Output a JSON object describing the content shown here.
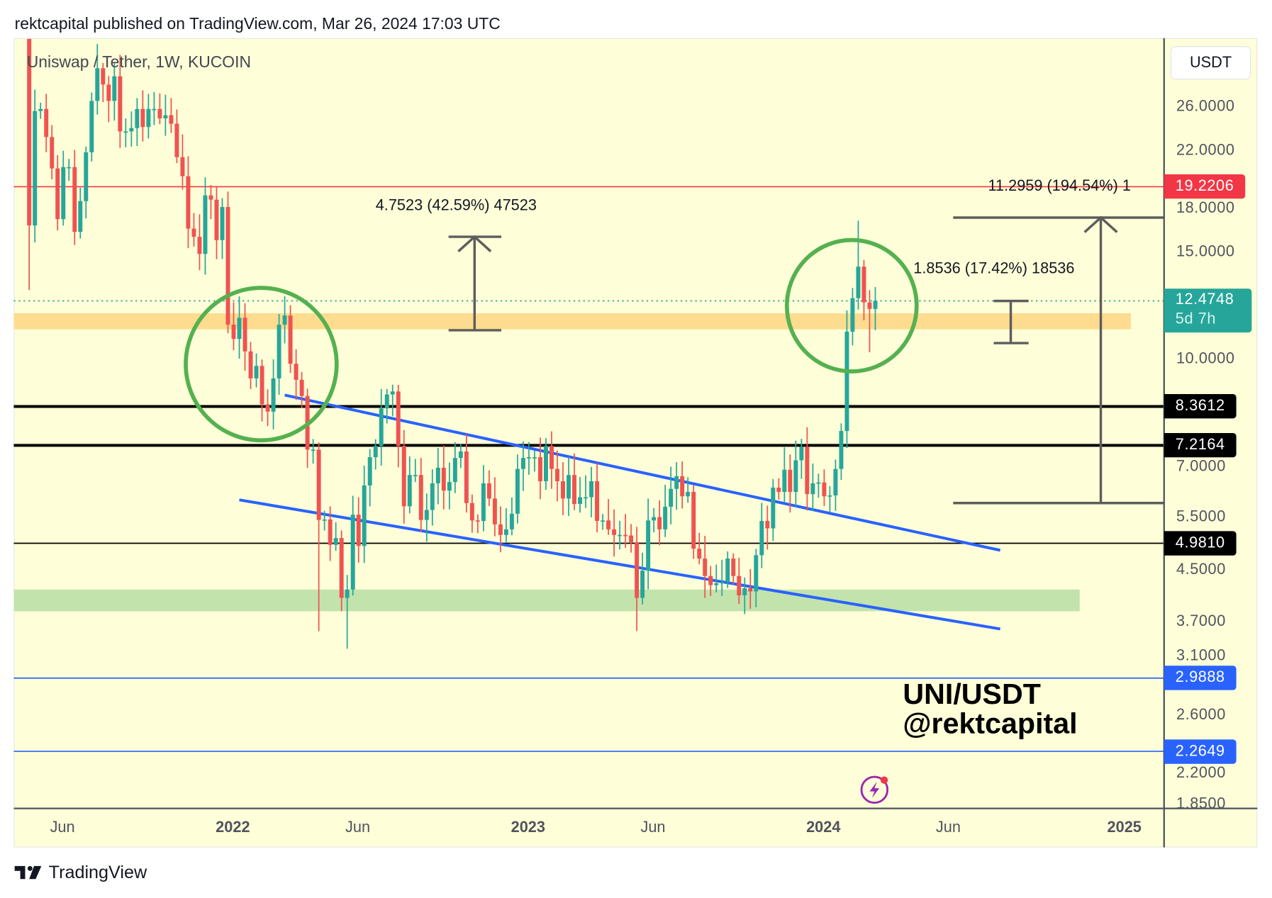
{
  "header": {
    "published": "rektcapital published on TradingView.com, Mar 26, 2024 17:03 UTC"
  },
  "footer": {
    "logo_text": "TradingView"
  },
  "chart_data": {
    "type": "candlestick",
    "title": "Uniswap / Tether, 1W, KUCOIN",
    "currency": "USDT",
    "scale": "log",
    "first_open": 40,
    "closes": [
      16.6,
      25.6,
      25.8,
      23.2,
      20.6,
      17.0,
      20.7,
      20.7,
      16.2,
      18.2,
      21.9,
      26.6,
      30.1,
      28.3,
      26.6,
      29.2,
      23.7,
      23.7,
      24.0,
      25.8,
      24.1,
      25.8,
      25.8,
      24.9,
      25.2,
      24.4,
      21.5,
      20.0,
      16.4,
      15.9,
      14.9,
      18.6,
      18.3,
      15.7,
      17.8,
      11.4,
      10.8,
      11.7,
      10.3,
      9.3,
      9.75,
      8.43,
      8.2,
      9.3,
      11.4,
      11.8,
      9.83,
      9.25,
      8.7,
      7.1,
      7.1,
      5.44,
      5.45,
      4.95,
      5.08,
      4.05,
      4.18,
      5.55,
      4.93,
      6.2,
      6.9,
      7.2,
      8.3,
      8.75,
      8.85,
      7.2,
      5.73,
      6.45,
      6.45,
      5.44,
      5.65,
      6.25,
      6.63,
      6.08,
      6.28,
      6.88,
      7.05,
      5.8,
      5.43,
      5.42,
      6.25,
      5.9,
      5.35,
      5.14,
      5.25,
      5.57,
      6.6,
      6.88,
      6.9,
      6.9,
      6.3,
      7.2,
      6.6,
      6.3,
      5.9,
      6.45,
      5.78,
      5.93,
      5.93,
      6.3,
      5.42,
      5.43,
      5.25,
      5.14,
      5.14,
      5.13,
      5.0,
      4.05,
      4.49,
      5.43,
      5.5,
      5.25,
      5.72,
      6.12,
      6.42,
      5.95,
      6.05,
      4.88,
      4.7,
      4.4,
      4.25,
      4.28,
      4.3,
      4.7,
      4.4,
      4.09,
      4.2,
      4.15,
      4.76,
      5.42,
      5.27,
      6.15,
      6.05,
      6.58,
      6.05,
      6.82,
      7.18,
      6.0,
      6.25,
      6.27,
      5.95,
      5.97,
      6.6,
      7.62,
      11.1,
      12.6,
      14.2,
      12.4,
      12.1,
      12.4748
    ],
    "known_highs": {
      "0": 42,
      "12": 33,
      "146": 16.9
    },
    "known_lows": {
      "0": 13.0,
      "51": 3.57,
      "56": 3.34,
      "107": 3.57,
      "126": 3.81,
      "148": 10.27
    },
    "y_ticks": [
      "26.0000",
      "22.0000",
      "18.0000",
      "15.0000",
      "10.0000",
      "7.0000",
      "5.5000",
      "4.5000",
      "3.7000",
      "3.1000",
      "2.6000",
      "2.2000",
      "1.8500"
    ],
    "y_tick_values": [
      26,
      22,
      18,
      15,
      10,
      7,
      5.5,
      4.5,
      3.7,
      3.1,
      2.6,
      2.2,
      1.85
    ],
    "x_ticks": [
      {
        "label": "Jun",
        "bold": false,
        "week": 3
      },
      {
        "label": "2022",
        "bold": true,
        "week": 33
      },
      {
        "label": "Jun",
        "bold": false,
        "week": 55
      },
      {
        "label": "2023",
        "bold": true,
        "week": 85
      },
      {
        "label": "Jun",
        "bold": false,
        "week": 107
      },
      {
        "label": "2024",
        "bold": true,
        "week": 137
      },
      {
        "label": "Jun",
        "bold": false,
        "week": 159
      },
      {
        "label": "2025",
        "bold": true,
        "week": 190
      }
    ],
    "levels": [
      {
        "value": 19.2206,
        "label": "19.2206",
        "color": "#f23645",
        "style": "thin"
      },
      {
        "value": 8.3612,
        "label": "8.3612",
        "color": "#000000",
        "style": "thick"
      },
      {
        "value": 7.2164,
        "label": "7.2164",
        "color": "#000000",
        "style": "thick"
      },
      {
        "value": 4.981,
        "label": "4.9810",
        "color": "#000000",
        "style": "thin"
      },
      {
        "value": 2.9888,
        "label": "2.9888",
        "color": "#2962ff",
        "style": "thin"
      },
      {
        "value": 2.2649,
        "label": "2.2649",
        "color": "#2962ff",
        "style": "thin"
      }
    ],
    "last_price": {
      "value": 12.4748,
      "label": "12.4748",
      "countdown": "5d 7h",
      "color": "#26a69a"
    },
    "zones": [
      {
        "name": "resistance-zone",
        "from": 11.2,
        "to": 11.9,
        "color": "#fddc8f",
        "end_week": 194
      },
      {
        "name": "support-zone",
        "from": 3.85,
        "to": 4.18,
        "color": "#c3e3ad",
        "end_week": 185
      }
    ],
    "trendlines": [
      {
        "name": "wedge-upper",
        "from": [
          45,
          8.73
        ],
        "to": [
          171,
          4.85
        ],
        "color": "#2962ff"
      },
      {
        "name": "wedge-lower",
        "from": [
          37,
          5.87
        ],
        "to": [
          171,
          3.6
        ],
        "color": "#2962ff"
      }
    ],
    "measures": [
      {
        "label": "4.7523 (42.59%) 47523",
        "from": 11.16,
        "to": 15.9,
        "week": 78.4
      },
      {
        "label": "1.8536 (17.42%) 18536",
        "from": 10.63,
        "to": 12.47,
        "week": 173
      },
      {
        "label": "11.2959 (194.54%) 1",
        "from": 5.8,
        "to": 17.1,
        "week": 188.7
      }
    ],
    "highlight_circles_weeks": [
      40.9,
      144.9
    ],
    "watermark": [
      "UNI/USDT",
      "@rektcapital"
    ],
    "colors": {
      "up": "#26a69a",
      "down": "#ef5350",
      "background": "#fefed8",
      "circle": "#55b150"
    }
  }
}
